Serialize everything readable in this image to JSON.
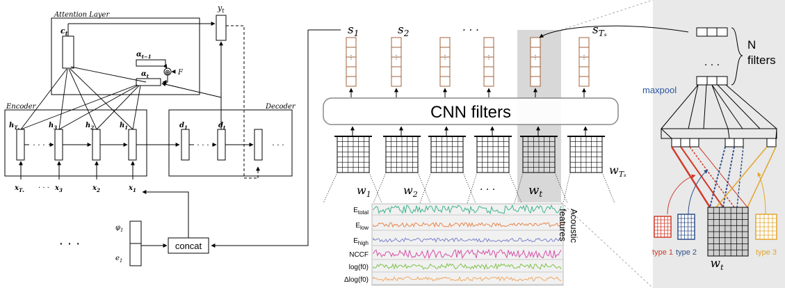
{
  "attention": {
    "title": "Attention Layer",
    "c_label": "c",
    "c_sub": "t",
    "alpha_prev": "α",
    "alpha_prev_sub": "t−1",
    "alpha_t": "α",
    "alpha_t_sub": "t",
    "conv_symbol": "⊛",
    "F_label": "F"
  },
  "y_label": "y",
  "y_sub": "t",
  "encoder": {
    "title": "Encoder",
    "h_labels": [
      "h",
      "h",
      "h",
      "h"
    ],
    "h_subs": [
      "Tₓ",
      "3",
      "2",
      "1"
    ],
    "dots": "· · ·"
  },
  "decoder": {
    "title": "Decoder",
    "d1": "d",
    "d1_sub": "1",
    "dt": "d",
    "dt_sub": "t",
    "dots": "· · ·",
    "dots_right": "· · ·"
  },
  "inputs": {
    "x_labels": [
      "x",
      "x",
      "x",
      "x"
    ],
    "x_subs": [
      "Tₓ",
      "3",
      "2",
      "1"
    ],
    "dots": "· · ·"
  },
  "embed": {
    "phi": "φ",
    "phi_sub": "1",
    "e": "e",
    "e_sub": "1",
    "concat": "concat",
    "big_dots": "· · ·"
  },
  "cnn": {
    "s_labels": [
      {
        "b": "s",
        "sub": "1"
      },
      {
        "b": "s",
        "sub": "2"
      },
      {
        "b": "· · ·",
        "sub": ""
      },
      {
        "b": "s",
        "sub": "Tₛ"
      }
    ],
    "filters_label": "CNN filters",
    "w_labels": [
      {
        "b": "w",
        "sub": "1"
      },
      {
        "b": "w",
        "sub": "2"
      },
      {
        "b": "· · ·",
        "sub": ""
      },
      {
        "b": "w",
        "sub": "t"
      },
      {
        "b": "w",
        "sub": "Tₛ"
      }
    ]
  },
  "features": {
    "names": [
      "E",
      "E",
      "E",
      "NCCF",
      "log(f0)",
      "Δlog(f0)"
    ],
    "name_subs": [
      "total",
      "low",
      "high",
      "",
      "",
      ""
    ],
    "colors": [
      "#3db28a",
      "#e8844a",
      "#7b82c9",
      "#d64fa9",
      "#7fc24a",
      "#f0a862"
    ],
    "side_label_1": "Acoustic",
    "side_label_2": "features"
  },
  "right_panel": {
    "n_filters_1": "N",
    "n_filters_2": "filters",
    "maxpool": "maxpool",
    "dots": "· · ·",
    "type_labels": [
      "type 1",
      "type 2",
      "type 3"
    ],
    "type_colors": [
      "#d03a2a",
      "#2f4f87",
      "#e2a52a"
    ],
    "w_label": "w",
    "w_sub": "t",
    "maxpool_color": "#2a56a0",
    "bg_color": "#e9e9e9"
  }
}
